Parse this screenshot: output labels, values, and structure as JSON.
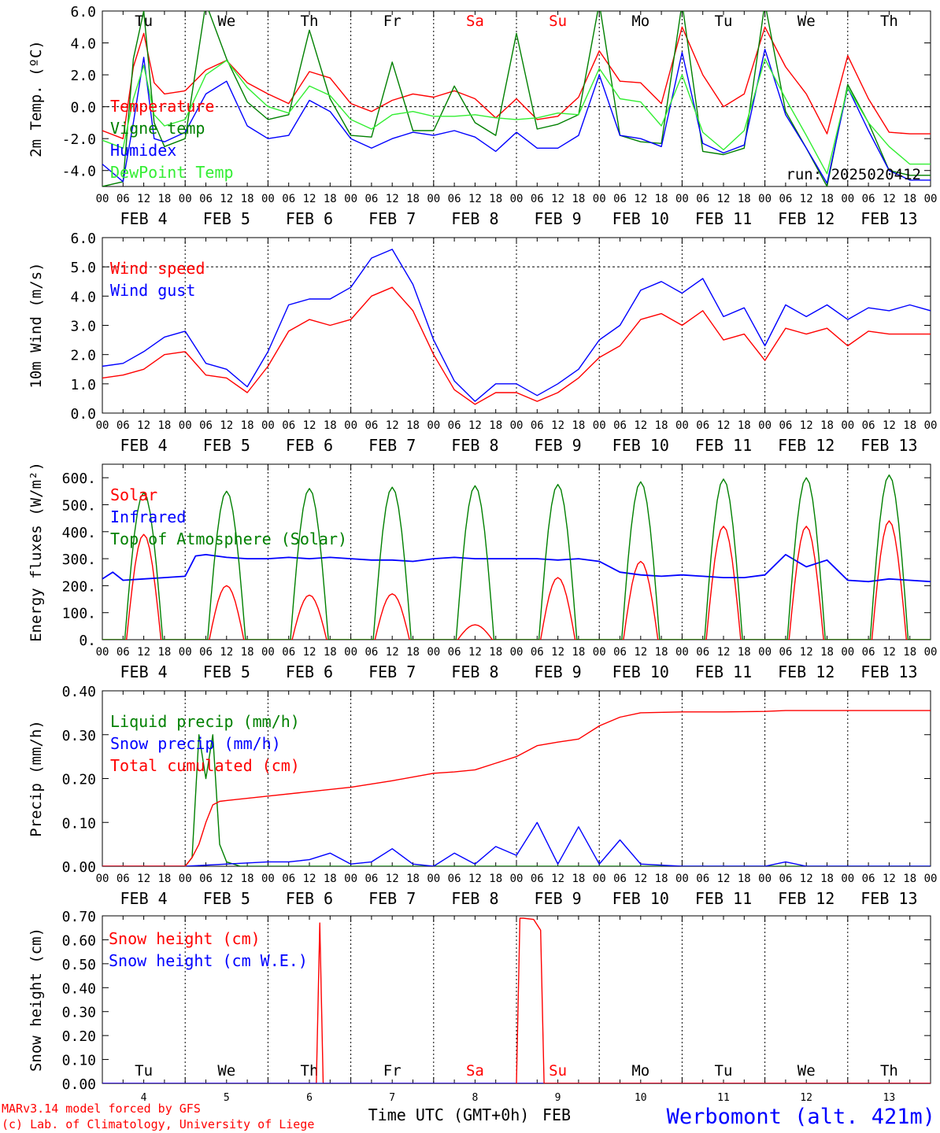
{
  "station": "Werbomont (alt. 421m)",
  "credits": [
    "MARv3.14 model forced by GFS",
    "(c) Lab. of Climatology, University of Liege"
  ],
  "bottom_axis": {
    "label": "Time UTC (GMT+0h)",
    "month": "FEB",
    "day_numbers": [
      "4",
      "5",
      "6",
      "7",
      "8",
      "9",
      "10",
      "11",
      "12",
      "13"
    ]
  },
  "hour_ticks": [
    "00",
    "06",
    "12",
    "18"
  ],
  "date_labels": [
    "FEB  4",
    "FEB  5",
    "FEB  6",
    "FEB  7",
    "FEB  8",
    "FEB  9",
    "FEB 10",
    "FEB 11",
    "FEB 12",
    "FEB 13"
  ],
  "weekdays": [
    "Tu",
    "We",
    "Th",
    "Fr",
    "Sa",
    "Su",
    "Mo",
    "Tu",
    "We",
    "Th"
  ],
  "weekend_days": [
    "Sa",
    "Su"
  ],
  "colors": {
    "red": "#ff0000",
    "green": "#008000",
    "blue": "#0000ff",
    "lightgreen": "#33ee33",
    "weekend": "#ff0000",
    "station": "#0000ff",
    "credits": "#ff0000"
  },
  "chart_data": [
    {
      "type": "line",
      "ylabel": "2m Temp. (ºC)",
      "ylim": [
        -5,
        6
      ],
      "yticks": [
        "6.0",
        "4.0",
        "2.0",
        "0.0",
        "-2.0",
        "-4.0"
      ],
      "ytick_values": [
        6,
        4,
        2,
        0,
        -2,
        -4
      ],
      "ref_line": 0,
      "run_label": "run: 2025020412",
      "x_unit": "hours since FEB 4 00 UTC",
      "series": [
        {
          "name": "Temperature",
          "color": "red",
          "x": [
            0,
            6,
            9,
            12,
            15,
            18,
            24,
            30,
            36,
            42,
            48,
            54,
            60,
            66,
            72,
            78,
            84,
            90,
            96,
            102,
            108,
            114,
            120,
            126,
            132,
            138,
            144,
            150,
            156,
            162,
            168,
            174,
            180,
            186,
            192,
            198,
            204,
            210,
            216,
            222,
            228,
            234,
            240
          ],
          "values": [
            -1.5,
            -2.0,
            2.5,
            4.6,
            1.5,
            0.8,
            1.0,
            2.3,
            2.9,
            1.5,
            0.8,
            0.2,
            2.2,
            1.8,
            0.2,
            -0.3,
            0.4,
            0.8,
            0.6,
            1.0,
            0.5,
            -0.7,
            0.5,
            -0.8,
            -0.6,
            0.6,
            3.5,
            1.6,
            1.5,
            0.2,
            5.0,
            2.0,
            0.0,
            0.8,
            5.0,
            2.5,
            0.8,
            -1.7,
            3.2,
            0.5,
            -1.6,
            -1.7,
            -1.7
          ]
        },
        {
          "name": "Vigne temp",
          "color": "green",
          "x": [
            0,
            6,
            9,
            12,
            15,
            18,
            24,
            30,
            36,
            42,
            48,
            54,
            60,
            66,
            72,
            78,
            84,
            90,
            96,
            102,
            108,
            114,
            120,
            126,
            132,
            138,
            144,
            150,
            156,
            162,
            168,
            174,
            180,
            186,
            192,
            198,
            204,
            210,
            216,
            222,
            228,
            234,
            240
          ],
          "values": [
            -5.0,
            -4.7,
            3.0,
            6.0,
            -1.0,
            -2.5,
            -2.0,
            6.5,
            3.0,
            0.3,
            -0.8,
            -0.5,
            4.8,
            0.5,
            -1.8,
            -1.9,
            2.8,
            -1.5,
            -1.5,
            1.3,
            -1.0,
            -1.8,
            4.6,
            -1.4,
            -1.1,
            -0.5,
            6.5,
            -1.8,
            -2.2,
            -2.3,
            6.5,
            -2.8,
            -3.0,
            -2.6,
            6.5,
            -0.3,
            -2.6,
            -5.0,
            1.4,
            -1.0,
            -4.0,
            -4.3,
            -4.3
          ]
        },
        {
          "name": "Humidex",
          "color": "blue",
          "x": [
            0,
            6,
            9,
            12,
            15,
            18,
            24,
            30,
            36,
            42,
            48,
            54,
            60,
            66,
            72,
            78,
            84,
            90,
            96,
            102,
            108,
            114,
            120,
            126,
            132,
            138,
            144,
            150,
            156,
            162,
            168,
            174,
            180,
            186,
            192,
            198,
            204,
            210,
            216,
            222,
            228,
            234,
            240
          ],
          "values": [
            -3.6,
            -4.7,
            -1.0,
            3.1,
            -2.0,
            -2.2,
            -1.6,
            0.8,
            1.6,
            -1.2,
            -2.0,
            -1.8,
            0.4,
            -0.3,
            -2.0,
            -2.6,
            -2.0,
            -1.6,
            -1.8,
            -1.5,
            -1.9,
            -2.8,
            -1.6,
            -2.6,
            -2.6,
            -1.8,
            2.0,
            -1.8,
            -2.0,
            -2.5,
            3.4,
            -2.3,
            -2.9,
            -2.4,
            3.6,
            -0.5,
            -2.6,
            -4.8,
            1.2,
            -1.5,
            -4.0,
            -4.6,
            -4.6
          ]
        },
        {
          "name": "DewPoint Temp",
          "color": "lightgreen",
          "x": [
            0,
            6,
            9,
            12,
            15,
            18,
            24,
            30,
            36,
            42,
            48,
            54,
            60,
            66,
            72,
            78,
            84,
            90,
            96,
            102,
            108,
            114,
            120,
            126,
            132,
            138,
            144,
            150,
            156,
            162,
            168,
            174,
            180,
            186,
            192,
            198,
            204,
            210,
            216,
            222,
            228,
            234,
            240
          ],
          "values": [
            -2.1,
            -2.6,
            0.5,
            2.6,
            -0.5,
            -1.2,
            -0.8,
            2.0,
            2.9,
            1.2,
            0.0,
            -0.4,
            1.3,
            0.7,
            -0.8,
            -1.4,
            -0.5,
            -0.3,
            -0.6,
            -0.6,
            -0.5,
            -0.7,
            -0.8,
            -0.7,
            -0.4,
            -0.5,
            2.4,
            0.5,
            0.3,
            -1.2,
            2.0,
            -1.6,
            -2.7,
            -1.5,
            3.0,
            0.5,
            -1.8,
            -4.2,
            1.2,
            -1.0,
            -2.5,
            -3.6,
            -3.6
          ]
        }
      ]
    },
    {
      "type": "line",
      "ylabel": "10m Wind (m/s)",
      "ylim": [
        0,
        6
      ],
      "yticks": [
        "6.0",
        "5.0",
        "4.0",
        "3.0",
        "2.0",
        "1.0",
        "0.0"
      ],
      "ytick_values": [
        6,
        5,
        4,
        3,
        2,
        1,
        0
      ],
      "ref_line": 5,
      "x_unit": "hours since FEB 4 00 UTC",
      "series": [
        {
          "name": "Wind speed",
          "color": "red",
          "x": [
            0,
            6,
            12,
            18,
            24,
            30,
            36,
            42,
            48,
            54,
            60,
            66,
            72,
            78,
            84,
            90,
            96,
            102,
            108,
            114,
            120,
            126,
            132,
            138,
            144,
            150,
            156,
            162,
            168,
            174,
            180,
            186,
            192,
            198,
            204,
            210,
            216,
            222,
            228,
            234,
            240
          ],
          "values": [
            1.2,
            1.3,
            1.5,
            2.0,
            2.1,
            1.3,
            1.2,
            0.7,
            1.6,
            2.8,
            3.2,
            3.0,
            3.2,
            4.0,
            4.3,
            3.5,
            2.0,
            0.8,
            0.3,
            0.7,
            0.7,
            0.4,
            0.7,
            1.2,
            1.9,
            2.3,
            3.2,
            3.4,
            3.0,
            3.5,
            2.5,
            2.7,
            1.8,
            2.9,
            2.7,
            2.9,
            2.3,
            2.8,
            2.7,
            2.7,
            2.7
          ]
        },
        {
          "name": "Wind gust",
          "color": "blue",
          "x": [
            0,
            6,
            12,
            18,
            24,
            30,
            36,
            42,
            48,
            54,
            60,
            66,
            72,
            78,
            84,
            90,
            96,
            102,
            108,
            114,
            120,
            126,
            132,
            138,
            144,
            150,
            156,
            162,
            168,
            174,
            180,
            186,
            192,
            198,
            204,
            210,
            216,
            222,
            228,
            234,
            240
          ],
          "values": [
            1.6,
            1.7,
            2.1,
            2.6,
            2.8,
            1.7,
            1.5,
            0.9,
            2.1,
            3.7,
            3.9,
            3.9,
            4.3,
            5.3,
            5.6,
            4.4,
            2.5,
            1.1,
            0.4,
            1.0,
            1.0,
            0.6,
            1.0,
            1.5,
            2.5,
            3.0,
            4.2,
            4.5,
            4.1,
            4.6,
            3.3,
            3.6,
            2.3,
            3.7,
            3.3,
            3.7,
            3.2,
            3.6,
            3.5,
            3.7,
            3.5
          ]
        }
      ]
    },
    {
      "type": "line",
      "ylabel": "Energy fluxes (W/m²)",
      "ylim": [
        0,
        650
      ],
      "yticks": [
        "600.",
        "500.",
        "400.",
        "300.",
        "200.",
        "100.",
        "0."
      ],
      "ytick_values": [
        600,
        500,
        400,
        300,
        200,
        100,
        0
      ],
      "x_unit": "hours since FEB 4 00 UTC",
      "series": [
        {
          "name": "Solar",
          "color": "red",
          "daily_peak": [
            390,
            200,
            165,
            170,
            55,
            230,
            290,
            420,
            420,
            440
          ],
          "daylight_hours": [
            7,
            17
          ]
        },
        {
          "name": "Infrared",
          "color": "blue",
          "x": [
            0,
            3,
            6,
            12,
            18,
            24,
            27,
            30,
            36,
            42,
            48,
            54,
            60,
            66,
            72,
            78,
            84,
            90,
            96,
            102,
            108,
            114,
            120,
            126,
            132,
            138,
            144,
            150,
            156,
            162,
            168,
            174,
            180,
            186,
            192,
            198,
            204,
            210,
            216,
            222,
            228,
            234,
            240
          ],
          "values": [
            225,
            250,
            220,
            225,
            230,
            235,
            310,
            315,
            305,
            300,
            300,
            305,
            300,
            305,
            300,
            295,
            295,
            290,
            300,
            305,
            300,
            300,
            300,
            300,
            295,
            300,
            290,
            250,
            240,
            235,
            240,
            235,
            230,
            230,
            240,
            315,
            270,
            295,
            220,
            215,
            225,
            220,
            215
          ]
        },
        {
          "name": "Top of Atmosphere (Solar)",
          "color": "green",
          "daily_peak": [
            545,
            550,
            560,
            565,
            570,
            575,
            585,
            595,
            600,
            610
          ],
          "daylight_hours": [
            6.5,
            17.5
          ]
        }
      ]
    },
    {
      "type": "line",
      "ylabel": "Precip (mm/h)",
      "ylim": [
        0,
        0.4
      ],
      "yticks": [
        "0.40",
        "0.30",
        "0.20",
        "0.10",
        "0.00"
      ],
      "ytick_values": [
        0.4,
        0.3,
        0.2,
        0.1,
        0
      ],
      "x_unit": "hours since FEB 4 00 UTC",
      "series": [
        {
          "name": "Liquid precip (mm/h)",
          "color": "green",
          "x": [
            0,
            24,
            26,
            28,
            30,
            32,
            34,
            36,
            40,
            48,
            72,
            96,
            120,
            144,
            168,
            192,
            216,
            240
          ],
          "values": [
            0,
            0,
            0.02,
            0.3,
            0.2,
            0.3,
            0.05,
            0.01,
            0,
            0,
            0,
            0,
            0,
            0,
            0,
            0,
            0,
            0
          ]
        },
        {
          "name": "Snow precip (mm/h)",
          "color": "blue",
          "x": [
            0,
            24,
            36,
            48,
            54,
            60,
            66,
            72,
            78,
            84,
            90,
            96,
            102,
            108,
            114,
            120,
            126,
            132,
            138,
            144,
            150,
            156,
            168,
            180,
            192,
            198,
            204,
            216,
            240
          ],
          "values": [
            0,
            0,
            0.005,
            0.01,
            0.01,
            0.015,
            0.03,
            0.005,
            0.01,
            0.04,
            0.005,
            0,
            0.03,
            0.005,
            0.045,
            0.025,
            0.1,
            0.005,
            0.09,
            0.005,
            0.06,
            0.005,
            0,
            0,
            0,
            0.01,
            0,
            0,
            0
          ]
        },
        {
          "name": "Total cumulated (cm)",
          "color": "red",
          "x": [
            0,
            24,
            26,
            28,
            30,
            32,
            34,
            36,
            48,
            60,
            72,
            84,
            96,
            102,
            108,
            114,
            120,
            126,
            132,
            138,
            144,
            150,
            156,
            168,
            180,
            192,
            198,
            216,
            240
          ],
          "values": [
            0,
            0,
            0.02,
            0.05,
            0.1,
            0.14,
            0.148,
            0.15,
            0.16,
            0.17,
            0.18,
            0.195,
            0.212,
            0.215,
            0.22,
            0.235,
            0.25,
            0.275,
            0.283,
            0.29,
            0.32,
            0.34,
            0.35,
            0.352,
            0.352,
            0.353,
            0.355,
            0.355,
            0.355
          ]
        }
      ]
    },
    {
      "type": "line",
      "ylabel": "Snow height (cm)",
      "ylim": [
        0,
        0.7
      ],
      "yticks": [
        "0.70",
        "0.60",
        "0.50",
        "0.40",
        "0.30",
        "0.20",
        "0.10",
        "0.00"
      ],
      "ytick_values": [
        0.7,
        0.6,
        0.5,
        0.4,
        0.3,
        0.2,
        0.1,
        0
      ],
      "x_unit": "hours since FEB 4 00 UTC",
      "series": [
        {
          "name": "Snow height (cm)",
          "color": "red",
          "x": [
            0,
            62,
            63,
            64,
            65,
            66,
            240
          ],
          "values": [
            0,
            0,
            0.67,
            0,
            0,
            0,
            0
          ]
        },
        {
          "name": "Snow height (cm W.E.)",
          "color": "blue",
          "x": [
            0,
            240
          ],
          "values": [
            0,
            0
          ]
        }
      ],
      "extra_segment": {
        "x": [
          120,
          121,
          122,
          125,
          127,
          128,
          129,
          240
        ],
        "values": [
          0,
          0.69,
          0.69,
          0.685,
          0.64,
          0,
          0,
          0
        ]
      }
    }
  ]
}
